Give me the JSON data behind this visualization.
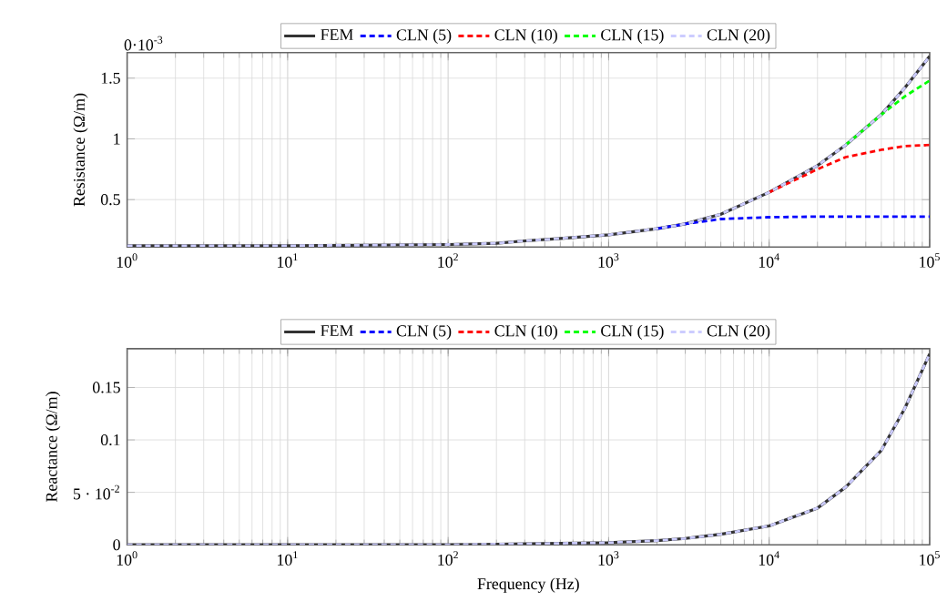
{
  "chart_data": [
    {
      "type": "line",
      "ylabel": "Resistance (Ω/m)",
      "log": "x",
      "grid": true,
      "legend": "top",
      "marker": "none",
      "annotations": [
        "0·10$^{-3}$"
      ],
      "xlim": [
        1,
        100000
      ],
      "ylim": [
        0.11,
        1.71
      ],
      "xticks": [
        {
          "value": 1,
          "label": "10$^{0}$"
        },
        {
          "value": 10,
          "label": "10$^{1}$"
        },
        {
          "value": 100,
          "label": "10$^{2}$"
        },
        {
          "value": 1000,
          "label": "10$^{3}$"
        },
        {
          "value": 10000,
          "label": "10$^{4}$"
        },
        {
          "value": 100000,
          "label": "10$^{5}$"
        }
      ],
      "yticks": [
        0.5,
        1,
        1.5
      ],
      "x": [
        1,
        10,
        100,
        200,
        300,
        500,
        1000,
        2000,
        3000,
        5000,
        10000,
        20000,
        30000,
        50000,
        70000,
        100000
      ],
      "series": [
        {
          "name": "FEM",
          "color": "#333333",
          "line_style": "solid",
          "values": [
            0.12,
            0.12,
            0.13,
            0.14,
            0.16,
            0.18,
            0.21,
            0.26,
            0.3,
            0.38,
            0.56,
            0.78,
            0.95,
            1.2,
            1.42,
            1.68
          ]
        },
        {
          "name": "CLN (5)",
          "color": "#0000ff",
          "line_style": "dashed",
          "values": [
            null,
            null,
            null,
            null,
            null,
            null,
            null,
            0.26,
            0.3,
            0.34,
            0.355,
            0.36,
            0.36,
            0.36,
            0.36,
            0.36
          ]
        },
        {
          "name": "CLN (10)",
          "color": "#ff0000",
          "line_style": "dashed",
          "values": [
            null,
            null,
            null,
            null,
            null,
            null,
            null,
            null,
            null,
            null,
            0.56,
            0.75,
            0.85,
            0.91,
            0.94,
            0.95
          ]
        },
        {
          "name": "CLN (15)",
          "color": "#00ff00",
          "line_style": "dashed",
          "values": [
            null,
            null,
            null,
            null,
            null,
            null,
            null,
            null,
            null,
            null,
            null,
            null,
            0.95,
            1.2,
            1.35,
            1.48
          ]
        },
        {
          "name": "CLN (20)",
          "color": "#ccccff",
          "line_style": "dashed",
          "values": [
            0.12,
            0.12,
            0.13,
            0.14,
            0.16,
            0.18,
            0.21,
            0.26,
            0.3,
            0.38,
            0.56,
            0.78,
            0.95,
            1.2,
            1.42,
            1.68
          ]
        }
      ]
    },
    {
      "type": "line",
      "xlabel": "Frequency (Hz)",
      "ylabel": "Reactance (Ω/m)",
      "log": "x",
      "grid": true,
      "legend": "top",
      "marker": "none",
      "xlim": [
        1,
        100000
      ],
      "ylim": [
        0,
        0.187
      ],
      "xticks": [
        {
          "value": 1,
          "label": "10$^{0}$"
        },
        {
          "value": 10,
          "label": "10$^{1}$"
        },
        {
          "value": 100,
          "label": "10$^{2}$"
        },
        {
          "value": 1000,
          "label": "10$^{3}$"
        },
        {
          "value": 10000,
          "label": "10$^{4}$"
        },
        {
          "value": 100000,
          "label": "10$^{5}$"
        }
      ],
      "yticks": [
        0,
        {
          "value": 0.05,
          "label": "5 · 10$^{-2}$"
        },
        0.1,
        0.15
      ],
      "x": [
        1,
        10,
        100,
        1000,
        2000,
        3000,
        5000,
        10000,
        20000,
        30000,
        50000,
        70000,
        100000
      ],
      "series": [
        {
          "name": "FEM",
          "color": "#333333",
          "line_style": "solid",
          "values": [
            0,
            0,
            0,
            0.002,
            0.004,
            0.006,
            0.01,
            0.018,
            0.035,
            0.055,
            0.09,
            0.13,
            0.182
          ]
        },
        {
          "name": "CLN (5)",
          "color": "#0000ff",
          "line_style": "dashed",
          "values": [
            null,
            null,
            null,
            null,
            null,
            null,
            null,
            null,
            null,
            null,
            null,
            null,
            null
          ]
        },
        {
          "name": "CLN (10)",
          "color": "#ff0000",
          "line_style": "dashed",
          "values": [
            null,
            null,
            null,
            null,
            null,
            null,
            null,
            null,
            null,
            null,
            null,
            null,
            null
          ]
        },
        {
          "name": "CLN (15)",
          "color": "#00ff00",
          "line_style": "dashed",
          "values": [
            null,
            null,
            null,
            null,
            null,
            null,
            null,
            null,
            null,
            null,
            null,
            null,
            null
          ]
        },
        {
          "name": "CLN (20)",
          "color": "#ccccff",
          "line_style": "dashed",
          "values": [
            0,
            0,
            0,
            0.002,
            0.004,
            0.006,
            0.01,
            0.018,
            0.035,
            0.055,
            0.09,
            0.13,
            0.182
          ]
        }
      ]
    }
  ]
}
